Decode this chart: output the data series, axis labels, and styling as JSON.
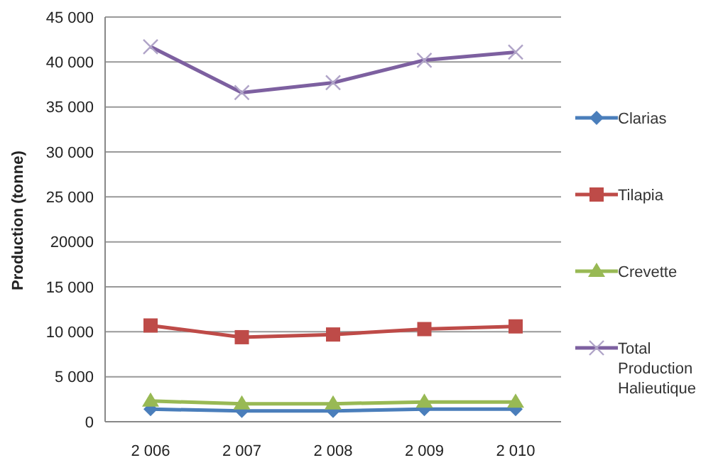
{
  "chart_data": {
    "type": "line",
    "ylabel": "Production (tonne)",
    "categories": [
      "2 006",
      "2 007",
      "2 008",
      "2 009",
      "2 010"
    ],
    "series": [
      {
        "name": "Clarias",
        "color": "#4a7ebb",
        "marker": "diamond",
        "values": [
          1400,
          1200,
          1200,
          1400,
          1400
        ]
      },
      {
        "name": "Tilapia",
        "color": "#be4b48",
        "marker": "square",
        "values": [
          10700,
          9400,
          9700,
          10300,
          10600
        ]
      },
      {
        "name": "Crevette",
        "color": "#98b954",
        "marker": "triangle",
        "values": [
          2300,
          2000,
          2000,
          2200,
          2200
        ]
      },
      {
        "name": "Total Production Halieutique",
        "color": "#7d60a0",
        "marker": "cross",
        "values": [
          41700,
          36600,
          37700,
          40200,
          41100
        ]
      }
    ],
    "ylim": [
      0,
      45000
    ],
    "yticks": [
      0,
      {
        "value": 5000,
        "label": "5 000"
      },
      {
        "value": 10000,
        "label": "10 000"
      },
      {
        "value": 15000,
        "label": "15 000"
      },
      {
        "value": 20000,
        "label": "20000"
      },
      {
        "value": 25000,
        "label": "25 000"
      },
      {
        "value": 30000,
        "label": "30 000"
      },
      {
        "value": 35000,
        "label": "35 000"
      },
      {
        "value": 40000,
        "label": "40 000"
      },
      {
        "value": 45000,
        "label": "45 000"
      }
    ],
    "grid": "y",
    "legend": "right",
    "line_style": "solid"
  }
}
